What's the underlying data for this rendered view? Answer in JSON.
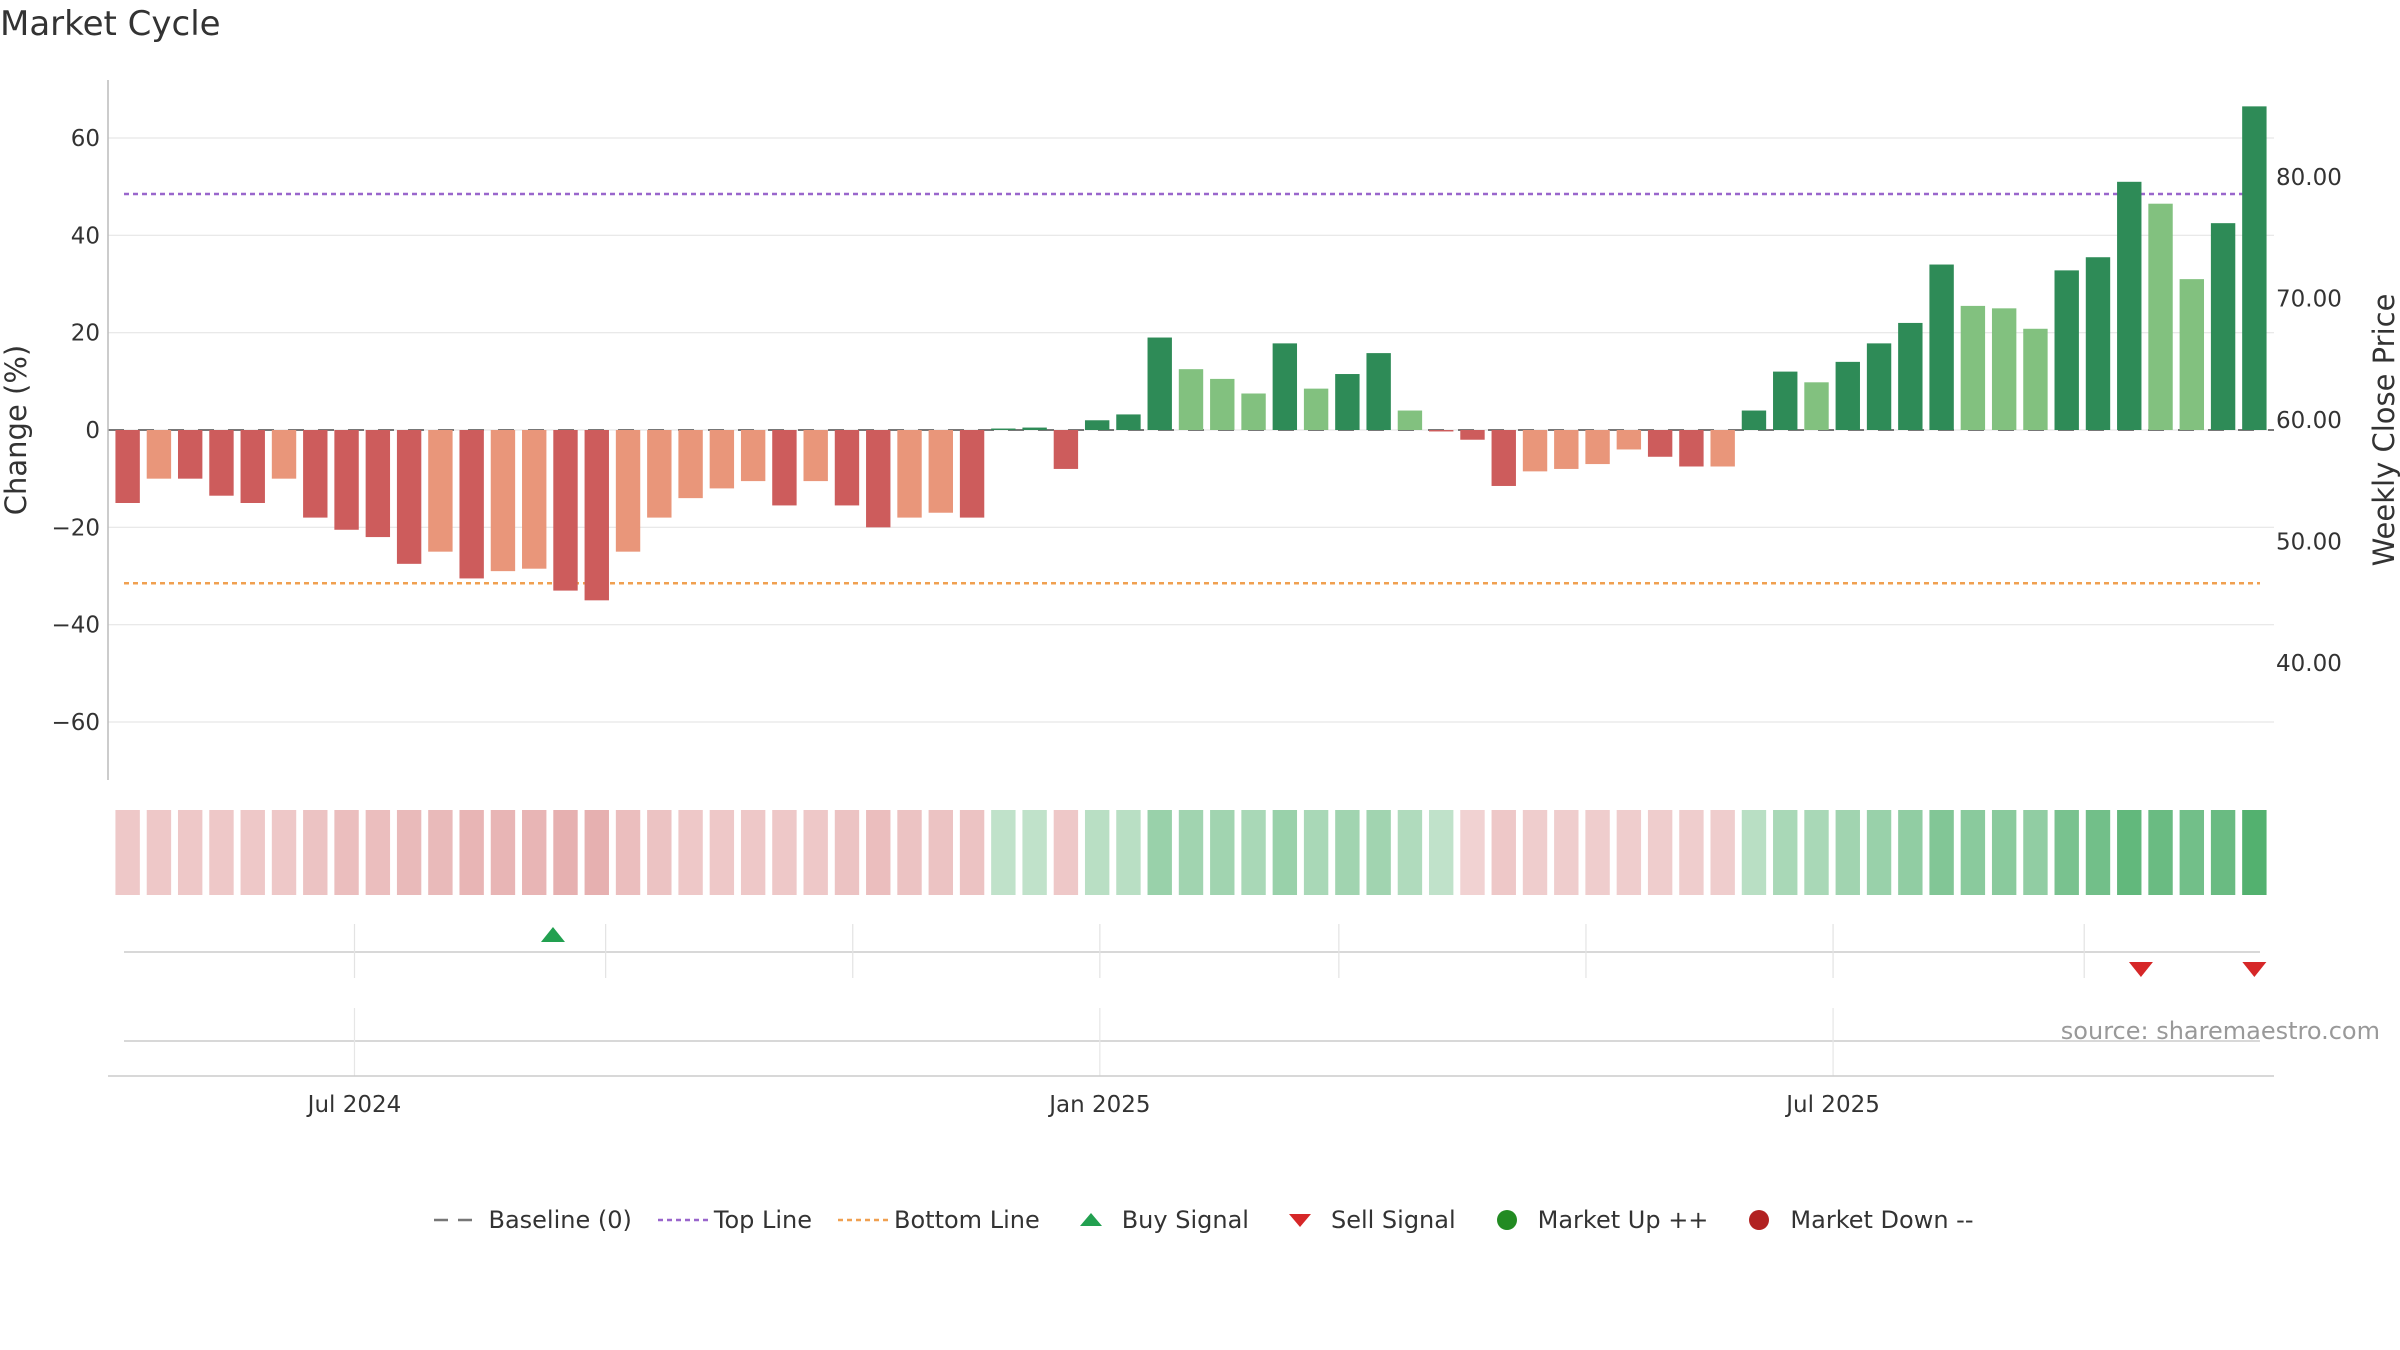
{
  "title": "Market Cycle",
  "source_note": "source: sharemaestro.com",
  "colors": {
    "strong_up": "#2e8b57",
    "mild_up": "#82c17f",
    "strong_down": "#cd5c5c",
    "mild_down": "#e9967a",
    "top_line": "#9966cc",
    "bottom_line": "#f0a050",
    "baseline": "#777777",
    "buy": "#22a050",
    "sell": "#d62728",
    "market_up": "#228b22",
    "market_down": "#b22222",
    "grid": "#e6e6e6"
  },
  "chart_data": {
    "type": "bar",
    "ylabel": "Change (%)",
    "y2label": "Weekly Close Price",
    "ylim": [
      -72,
      72
    ],
    "yticks": [
      60,
      40,
      20,
      0,
      -20,
      -40,
      -60
    ],
    "ytick_labels": [
      "60",
      "40",
      "20",
      "0",
      "−20",
      "−40",
      "−60"
    ],
    "y2lim": [
      32,
      88
    ],
    "y2ticks": [
      80,
      70,
      60,
      50,
      40
    ],
    "y2tick_labels": [
      "80.00",
      "70.00",
      "60.00",
      "50.00",
      "40.00"
    ],
    "x_start": "2024-05-06",
    "x_end": "2025-10-13",
    "x_step_days": 7,
    "xticks": [
      "2024-07-01",
      "2025-01-01",
      "2025-07-01"
    ],
    "xtick_labels": [
      "Jul 2024",
      "Jan 2025",
      "Jul 2025"
    ],
    "minor_gridlines": [
      "2024-07-01",
      "2024-09-01",
      "2024-11-01",
      "2025-01-01",
      "2025-03-01",
      "2025-05-01",
      "2025-07-01",
      "2025-09-01"
    ],
    "top_line": 48.5,
    "bottom_line": -31.5,
    "values": [
      -15,
      -10,
      -10,
      -13.5,
      -15,
      -10,
      -18,
      -20.5,
      -22,
      -27.5,
      -25,
      -30.5,
      -29,
      -28.5,
      -33,
      -35,
      -25,
      -18,
      -14,
      -12,
      -10.5,
      -15.5,
      -10.5,
      -15.5,
      -20,
      -18,
      -17,
      -18,
      0.3,
      0.5,
      -8,
      2,
      3.2,
      19,
      12.5,
      10.5,
      7.5,
      17.8,
      8.5,
      11.5,
      15.8,
      4,
      -0.3,
      -2,
      -11.5,
      -8.5,
      -8,
      -7,
      -4,
      -5.5,
      -7.5,
      -7.5,
      4,
      12,
      9.8,
      14,
      17.8,
      22,
      34,
      25.5,
      25,
      20.8,
      32.8,
      35.5,
      51,
      46.5,
      31,
      42.5,
      66.5
    ],
    "strength": [
      "strong_down",
      "mild_down",
      "strong_down",
      "strong_down",
      "strong_down",
      "mild_down",
      "strong_down",
      "strong_down",
      "strong_down",
      "strong_down",
      "mild_down",
      "strong_down",
      "mild_down",
      "mild_down",
      "strong_down",
      "strong_down",
      "mild_down",
      "mild_down",
      "mild_down",
      "mild_down",
      "mild_down",
      "strong_down",
      "mild_down",
      "strong_down",
      "strong_down",
      "mild_down",
      "mild_down",
      "strong_down",
      "strong_up",
      "strong_up",
      "strong_down",
      "strong_up",
      "strong_up",
      "strong_up",
      "mild_up",
      "mild_up",
      "mild_up",
      "strong_up",
      "mild_up",
      "strong_up",
      "strong_up",
      "mild_up",
      "strong_down",
      "strong_down",
      "strong_down",
      "mild_down",
      "mild_down",
      "mild_down",
      "mild_down",
      "strong_down",
      "strong_down",
      "mild_down",
      "strong_up",
      "strong_up",
      "mild_up",
      "strong_up",
      "strong_up",
      "strong_up",
      "strong_up",
      "mild_up",
      "mild_up",
      "mild_up",
      "strong_up",
      "strong_up",
      "strong_up",
      "mild_up",
      "mild_up",
      "strong_up",
      "strong_up"
    ],
    "heat_strip": [
      -0.3,
      -0.3,
      -0.3,
      -0.3,
      -0.3,
      -0.3,
      -0.35,
      -0.4,
      -0.4,
      -0.45,
      -0.45,
      -0.5,
      -0.5,
      -0.5,
      -0.55,
      -0.55,
      -0.4,
      -0.35,
      -0.3,
      -0.3,
      -0.3,
      -0.3,
      -0.3,
      -0.35,
      -0.4,
      -0.35,
      -0.35,
      -0.35,
      0.2,
      0.2,
      -0.3,
      0.25,
      0.25,
      0.45,
      0.4,
      0.4,
      0.35,
      0.45,
      0.35,
      0.4,
      0.4,
      0.3,
      0.2,
      -0.2,
      -0.3,
      -0.25,
      -0.25,
      -0.25,
      -0.25,
      -0.25,
      -0.25,
      -0.25,
      0.25,
      0.35,
      0.35,
      0.4,
      0.45,
      0.5,
      0.6,
      0.55,
      0.55,
      0.5,
      0.65,
      0.7,
      0.8,
      0.75,
      0.7,
      0.75,
      0.9
    ],
    "buy_signals": [
      "2024-08-19"
    ],
    "sell_signals": [
      "2025-09-15",
      "2025-10-13"
    ],
    "legend": [
      {
        "label": "Baseline (0)",
        "symbol": "dash",
        "color_key": "baseline"
      },
      {
        "label": "Top Line",
        "symbol": "dot",
        "color_key": "top_line"
      },
      {
        "label": "Bottom Line",
        "symbol": "dot",
        "color_key": "bottom_line"
      },
      {
        "label": "Buy Signal",
        "symbol": "triangle-up",
        "color_key": "buy"
      },
      {
        "label": "Sell Signal",
        "symbol": "triangle-down",
        "color_key": "sell"
      },
      {
        "label": "Market Up ++",
        "symbol": "circle",
        "color_key": "market_up"
      },
      {
        "label": "Market Down --",
        "symbol": "circle",
        "color_key": "market_down"
      }
    ]
  }
}
